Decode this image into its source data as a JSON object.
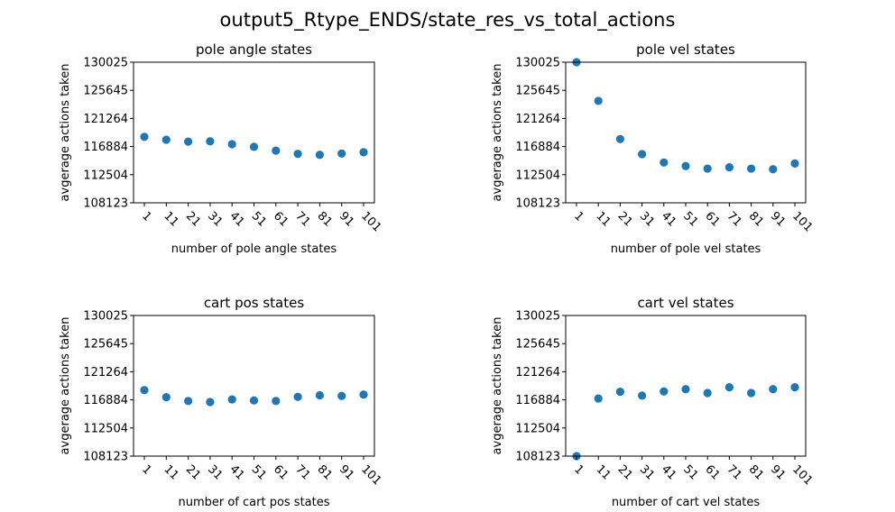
{
  "figure_title": "output5_Rtype_ENDS/state_res_vs_total_actions",
  "colors": {
    "marker": "#1f77b4",
    "axis": "#000000",
    "background": "#ffffff"
  },
  "chart_data": [
    {
      "type": "scatter",
      "title": "pole angle states",
      "xlabel": "number of pole angle states",
      "ylabel": "avgerage actions taken",
      "x": [
        "1",
        "11",
        "21",
        "31",
        "41",
        "51",
        "61",
        "71",
        "81",
        "91",
        "101"
      ],
      "y": [
        118400,
        117950,
        117650,
        117700,
        117250,
        116850,
        116250,
        115750,
        115600,
        115800,
        116000
      ],
      "yticks": [
        108123,
        112504,
        116884,
        121264,
        125645,
        130025
      ],
      "ylim": [
        108123,
        130025
      ],
      "grid": false
    },
    {
      "type": "scatter",
      "title": "pole vel states",
      "xlabel": "number of pole vel states",
      "ylabel": "avgerage actions taken",
      "x": [
        "1",
        "11",
        "21",
        "31",
        "41",
        "51",
        "61",
        "71",
        "81",
        "91",
        "101"
      ],
      "y": [
        130025,
        124000,
        118050,
        115700,
        114400,
        113850,
        113450,
        113650,
        113450,
        113350,
        114250
      ],
      "yticks": [
        108123,
        112504,
        116884,
        121264,
        125645,
        130025
      ],
      "ylim": [
        108123,
        130025
      ],
      "grid": false
    },
    {
      "type": "scatter",
      "title": "cart pos states",
      "xlabel": "number of cart pos states",
      "ylabel": "avgerage actions taken",
      "x": [
        "1",
        "11",
        "21",
        "31",
        "41",
        "51",
        "61",
        "71",
        "81",
        "91",
        "101"
      ],
      "y": [
        118400,
        117300,
        116700,
        116550,
        116950,
        116800,
        116700,
        117350,
        117600,
        117500,
        117700
      ],
      "yticks": [
        108123,
        112504,
        116884,
        121264,
        125645,
        130025
      ],
      "ylim": [
        108123,
        130025
      ],
      "grid": false
    },
    {
      "type": "scatter",
      "title": "cart vel states",
      "xlabel": "number of cart vel states",
      "ylabel": "avgerage actions taken",
      "x": [
        "1",
        "11",
        "21",
        "31",
        "41",
        "51",
        "61",
        "71",
        "81",
        "91",
        "101"
      ],
      "y": [
        108123,
        117100,
        118150,
        117550,
        118200,
        118550,
        117950,
        118850,
        117950,
        118550,
        118850
      ],
      "yticks": [
        108123,
        112504,
        116884,
        121264,
        125645,
        130025
      ],
      "ylim": [
        108123,
        130025
      ],
      "grid": false
    }
  ]
}
